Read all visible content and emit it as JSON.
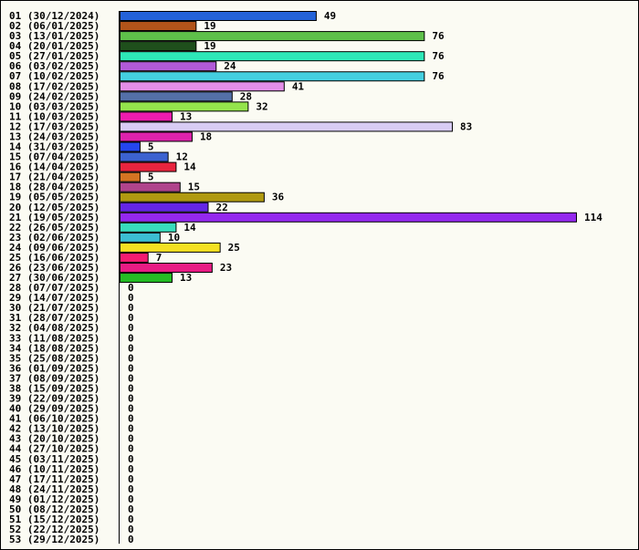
{
  "chart_data": {
    "type": "bar",
    "orientation": "horizontal",
    "grid": false,
    "categories": [
      "01 (30/12/2024)",
      "02 (06/01/2025)",
      "03 (13/01/2025)",
      "04 (20/01/2025)",
      "05 (27/01/2025)",
      "06 (03/02/2025)",
      "07 (10/02/2025)",
      "08 (17/02/2025)",
      "09 (24/02/2025)",
      "10 (03/03/2025)",
      "11 (10/03/2025)",
      "12 (17/03/2025)",
      "13 (24/03/2025)",
      "14 (31/03/2025)",
      "15 (07/04/2025)",
      "16 (14/04/2025)",
      "17 (21/04/2025)",
      "18 (28/04/2025)",
      "19 (05/05/2025)",
      "20 (12/05/2025)",
      "21 (19/05/2025)",
      "22 (26/05/2025)",
      "23 (02/06/2025)",
      "24 (09/06/2025)",
      "25 (16/06/2025)",
      "26 (23/06/2025)",
      "27 (30/06/2025)",
      "28 (07/07/2025)",
      "29 (14/07/2025)",
      "30 (21/07/2025)",
      "31 (28/07/2025)",
      "32 (04/08/2025)",
      "33 (11/08/2025)",
      "34 (18/08/2025)",
      "35 (25/08/2025)",
      "36 (01/09/2025)",
      "37 (08/09/2025)",
      "38 (15/09/2025)",
      "39 (22/09/2025)",
      "40 (29/09/2025)",
      "41 (06/10/2025)",
      "42 (13/10/2025)",
      "43 (20/10/2025)",
      "44 (27/10/2025)",
      "45 (03/11/2025)",
      "46 (10/11/2025)",
      "47 (17/11/2025)",
      "48 (24/11/2025)",
      "49 (01/12/2025)",
      "50 (08/12/2025)",
      "51 (15/12/2025)",
      "52 (22/12/2025)",
      "53 (29/12/2025)"
    ],
    "values": [
      49,
      19,
      76,
      19,
      76,
      24,
      76,
      41,
      28,
      32,
      13,
      83,
      18,
      5,
      12,
      14,
      5,
      15,
      36,
      22,
      114,
      14,
      10,
      25,
      7,
      23,
      13,
      0,
      0,
      0,
      0,
      0,
      0,
      0,
      0,
      0,
      0,
      0,
      0,
      0,
      0,
      0,
      0,
      0,
      0,
      0,
      0,
      0,
      0,
      0,
      0,
      0,
      0
    ],
    "colors": [
      "#2462d8",
      "#b2541a",
      "#5ec04a",
      "#1f4f1c",
      "#2ee8b8",
      "#b25ad8",
      "#44cfe0",
      "#e48ee8",
      "#5470a8",
      "#94e44c",
      "#ee1cae",
      "#d8ccf4",
      "#de22ac",
      "#2446ee",
      "#3c62d0",
      "#e8243e",
      "#d47422",
      "#b0448c",
      "#b09a10",
      "#6426e4",
      "#9428ee",
      "#38dcbc",
      "#3cbed2",
      "#f4e022",
      "#f41c70",
      "#e81c84",
      "#24bc24",
      "#cccccc",
      "#cccccc",
      "#cccccc",
      "#cccccc",
      "#cccccc",
      "#cccccc",
      "#cccccc",
      "#cccccc",
      "#cccccc",
      "#cccccc",
      "#cccccc",
      "#cccccc",
      "#cccccc",
      "#cccccc",
      "#cccccc",
      "#cccccc",
      "#cccccc",
      "#cccccc",
      "#cccccc",
      "#cccccc",
      "#cccccc",
      "#cccccc",
      "#cccccc",
      "#cccccc",
      "#cccccc",
      "#cccccc"
    ],
    "xlim": [
      0,
      114
    ]
  }
}
